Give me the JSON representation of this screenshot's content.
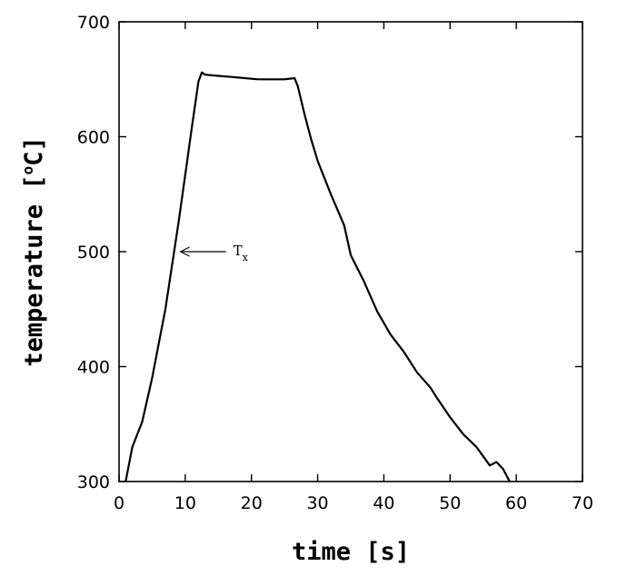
{
  "chart_data": {
    "type": "line",
    "xlabel": "time [s]",
    "ylabel_parts": {
      "base": "temperature [",
      "degree": "o",
      "unit": "C]"
    },
    "xlim": [
      0,
      70
    ],
    "ylim": [
      300,
      700
    ],
    "x_ticks": [
      0,
      10,
      20,
      30,
      40,
      50,
      60,
      70
    ],
    "y_ticks": [
      300,
      400,
      500,
      600,
      700
    ],
    "grid": false,
    "series": [
      {
        "x": [
          1,
          2,
          3.5,
          5,
          6,
          7,
          8,
          9,
          10,
          11,
          12,
          12.5,
          13,
          15,
          17,
          19,
          21,
          23,
          25,
          26.5,
          27,
          28,
          29,
          30,
          32,
          34,
          35,
          37,
          39,
          41,
          43,
          45,
          47,
          48,
          50,
          52,
          54,
          55,
          56,
          57,
          58,
          59
        ],
        "y": [
          300,
          330,
          352,
          390,
          420,
          450,
          488,
          526,
          567,
          608,
          648,
          656,
          654,
          653,
          652,
          651,
          650,
          650,
          650,
          651,
          644,
          620,
          598,
          579,
          550,
          523,
          497,
          474,
          448,
          428,
          413,
          395,
          382,
          373,
          356,
          341,
          330,
          322,
          314,
          317,
          311,
          300
        ]
      }
    ],
    "annotations": [
      {
        "text": "T",
        "subscript": "x",
        "arrow_to": {
          "x": 9,
          "y": 500
        }
      }
    ]
  }
}
